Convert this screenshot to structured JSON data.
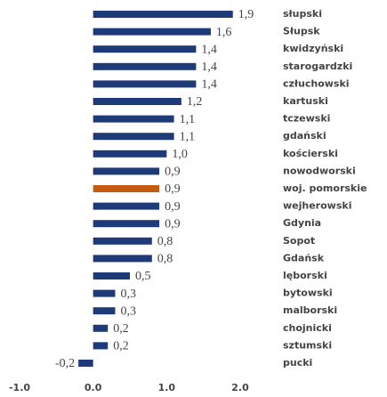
{
  "chart_data": {
    "type": "barh",
    "categories": [
      "słupski",
      "Słupsk",
      "kwidzyński",
      "starogardzki",
      "człuchowski",
      "kartuski",
      "tczewski",
      "gdański",
      "kościerski",
      "nowodworski",
      "woj. pomorskie",
      "wejherowski",
      "Gdynia",
      "Sopot",
      "Gdańsk",
      "lęborski",
      "bytowski",
      "malborski",
      "chojnicki",
      "sztumski",
      "pucki"
    ],
    "values": [
      1.9,
      1.6,
      1.4,
      1.4,
      1.4,
      1.2,
      1.1,
      1.1,
      1.0,
      0.9,
      0.9,
      0.9,
      0.9,
      0.8,
      0.8,
      0.5,
      0.3,
      0.3,
      0.2,
      0.2,
      -0.2
    ],
    "value_labels": [
      "1,9",
      "1,6",
      "1,4",
      "1,4",
      "1,4",
      "1,2",
      "1,1",
      "1,1",
      "1,0",
      "0,9",
      "0,9",
      "0,9",
      "0,9",
      "0,8",
      "0,8",
      "0,5",
      "0,3",
      "0,3",
      "0,2",
      "0,2",
      "-0,2"
    ],
    "colors": [
      "#1f3a78",
      "#1f3a78",
      "#1f3a78",
      "#1f3a78",
      "#1f3a78",
      "#1f3a78",
      "#1f3a78",
      "#1f3a78",
      "#1f3a78",
      "#1f3a78",
      "#c55a11",
      "#1f3a78",
      "#1f3a78",
      "#1f3a78",
      "#1f3a78",
      "#1f3a78",
      "#1f3a78",
      "#1f3a78",
      "#1f3a78",
      "#1f3a78",
      "#1f3a78"
    ],
    "xlim": [
      -1.0,
      2.0
    ],
    "xticks": [
      {
        "value": -1.0,
        "label": "-1.0"
      },
      {
        "value": 0,
        "label": "0.0"
      },
      {
        "value": 1.0,
        "label": "1.0"
      },
      {
        "value": 2.0,
        "label": "2.0"
      }
    ],
    "grid": false
  }
}
